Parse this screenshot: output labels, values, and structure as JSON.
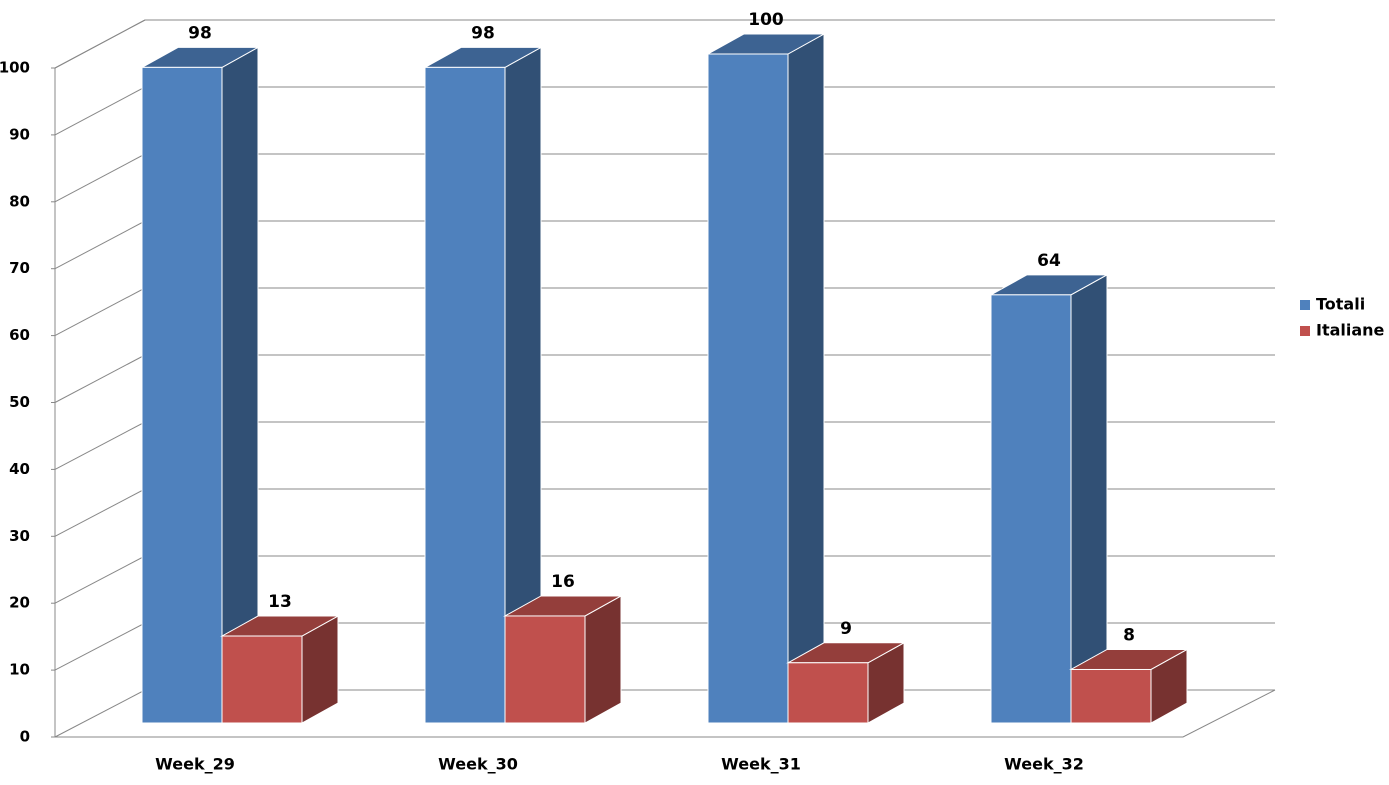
{
  "chart_data": {
    "type": "bar3d",
    "categories": [
      "Week_29",
      "Week_30",
      "Week_31",
      "Week_32"
    ],
    "series": [
      {
        "name": "Totali",
        "color": "#4f81bd",
        "values": [
          98,
          98,
          100,
          64
        ]
      },
      {
        "name": "Italiane",
        "color": "#c0504d",
        "values": [
          13,
          16,
          9,
          8
        ]
      }
    ],
    "ylim": [
      0,
      100
    ],
    "yticks": [
      0,
      10,
      20,
      30,
      40,
      50,
      60,
      70,
      80,
      90,
      100
    ],
    "grid": true,
    "legend": "right"
  }
}
